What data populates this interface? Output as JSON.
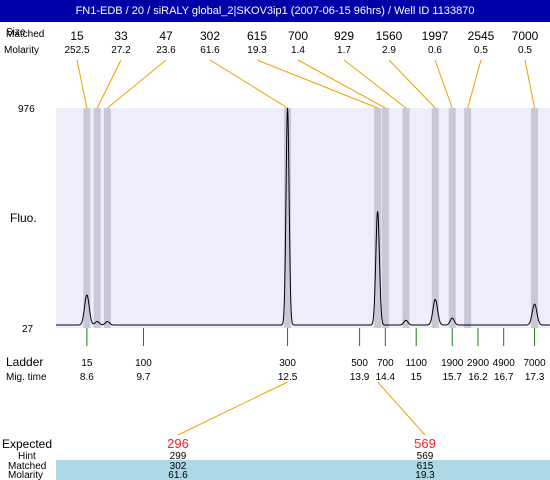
{
  "title": "FN1-EDB / 20 / siRALY global_2|SKOV3ip1 (2007-06-15 96hrs) / Well ID 1133870",
  "row_labels": {
    "sizes_overlap_a": "Size",
    "sizes_overlap_b": "Matched",
    "molarity": "Molarity",
    "fluo": "Fluo.",
    "ladder": "Ladder",
    "mig_time": "Mig. time"
  },
  "y_tick_top": "976",
  "y_tick_bottom": "27",
  "chart_data": {
    "type": "line",
    "title": "FN1-EDB / 20 / siRALY global_2|SKOV3ip1 (2007-06-15 96hrs) / Well ID 1133870",
    "xlabel": "Mig. time",
    "ylabel": "Fluo.",
    "xlim": [
      8.0,
      17.6
    ],
    "ylim": [
      27,
      976
    ],
    "grid": false,
    "colors": {
      "plot_bg": "#eeeefa",
      "band": "#c8c8d8",
      "connector": "#f0a000",
      "ladder_tick": "#1a7a1a",
      "trace": "#000000",
      "expected": "#ff2020",
      "highlight": "#add8e6",
      "title_bar": "#0000a8"
    },
    "peaks_top": [
      {
        "size": "15",
        "molarity": "252.5",
        "time": 8.6
      },
      {
        "size": "33",
        "molarity": "27.2",
        "time": 8.8
      },
      {
        "size": "47",
        "molarity": "23.6",
        "time": 9.0
      },
      {
        "size": "302",
        "molarity": "61.6",
        "time": 12.5
      },
      {
        "size": "615",
        "molarity": "19.3",
        "time": 14.25
      },
      {
        "size": "700",
        "molarity": "1.4",
        "time": 14.4
      },
      {
        "size": "929",
        "molarity": "1.7",
        "time": 14.8
      },
      {
        "size": "1560",
        "molarity": "2.9",
        "time": 15.37
      },
      {
        "size": "1997",
        "molarity": "0.6",
        "time": 15.7
      },
      {
        "size": "2545",
        "molarity": "0.5",
        "time": 16.0
      },
      {
        "size": "7000",
        "molarity": "0.5",
        "time": 17.3
      }
    ],
    "ladder": [
      {
        "size": "15",
        "time": "8.6"
      },
      {
        "size": "100",
        "time": "9.7"
      },
      {
        "size": "300",
        "time": "12.5"
      },
      {
        "size": "500",
        "time": "13.9"
      },
      {
        "size": "700",
        "time": "14.4"
      },
      {
        "size": "1100",
        "time": "15"
      },
      {
        "size": "1900",
        "time": "15.7"
      },
      {
        "size": "2900",
        "time": "16.2"
      },
      {
        "size": "4900",
        "time": "16.7"
      },
      {
        "size": "7000",
        "time": "17.3"
      }
    ],
    "trace": {
      "baseline": 40,
      "peaks": [
        {
          "t": 8.6,
          "h": 170,
          "w": 0.045
        },
        {
          "t": 8.8,
          "h": 55,
          "w": 0.04
        },
        {
          "t": 9.0,
          "h": 55,
          "w": 0.04
        },
        {
          "t": 12.5,
          "h": 976,
          "w": 0.03
        },
        {
          "t": 14.25,
          "h": 530,
          "w": 0.035
        },
        {
          "t": 14.8,
          "h": 60,
          "w": 0.04
        },
        {
          "t": 15.37,
          "h": 150,
          "w": 0.045
        },
        {
          "t": 15.7,
          "h": 70,
          "w": 0.04
        },
        {
          "t": 17.3,
          "h": 130,
          "w": 0.045
        }
      ]
    },
    "expected_rows": {
      "labels": [
        "Expected",
        "Hint",
        "Matched",
        "Molarity"
      ],
      "columns": [
        {
          "time": 12.5,
          "expected": "296",
          "hint": "299",
          "matched": "302",
          "molarity": "61.6"
        },
        {
          "time": 14.25,
          "expected": "569",
          "hint": "569",
          "matched": "615",
          "molarity": "19.3"
        }
      ]
    }
  }
}
